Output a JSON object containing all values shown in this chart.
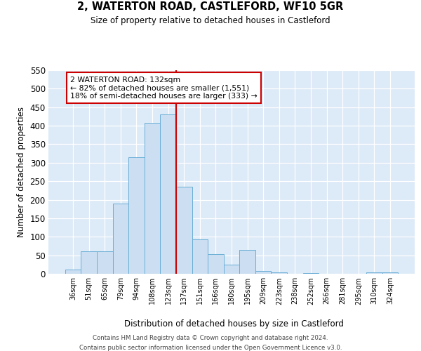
{
  "title": "2, WATERTON ROAD, CASTLEFORD, WF10 5GR",
  "subtitle": "Size of property relative to detached houses in Castleford",
  "xlabel": "Distribution of detached houses by size in Castleford",
  "ylabel": "Number of detached properties",
  "bar_color": "#ccdff2",
  "bar_edge_color": "#6aaed6",
  "categories": [
    "36sqm",
    "51sqm",
    "65sqm",
    "79sqm",
    "94sqm",
    "108sqm",
    "123sqm",
    "137sqm",
    "151sqm",
    "166sqm",
    "180sqm",
    "195sqm",
    "209sqm",
    "223sqm",
    "238sqm",
    "252sqm",
    "266sqm",
    "281sqm",
    "295sqm",
    "310sqm",
    "324sqm"
  ],
  "values": [
    12,
    60,
    60,
    190,
    315,
    408,
    430,
    235,
    93,
    53,
    25,
    65,
    8,
    3,
    0,
    1,
    0,
    0,
    0,
    3,
    3
  ],
  "ylim": [
    0,
    550
  ],
  "yticks": [
    0,
    50,
    100,
    150,
    200,
    250,
    300,
    350,
    400,
    450,
    500,
    550
  ],
  "vline_color": "#cc0000",
  "annotation_title": "2 WATERTON ROAD: 132sqm",
  "annotation_line1": "← 82% of detached houses are smaller (1,551)",
  "annotation_line2": "18% of semi-detached houses are larger (333) →",
  "annotation_box_color": "#ffffff",
  "annotation_box_edge": "#cc0000",
  "footnote1": "Contains HM Land Registry data © Crown copyright and database right 2024.",
  "footnote2": "Contains public sector information licensed under the Open Government Licence v3.0.",
  "bg_color": "#ddeaf7",
  "grid_color": "#ffffff"
}
